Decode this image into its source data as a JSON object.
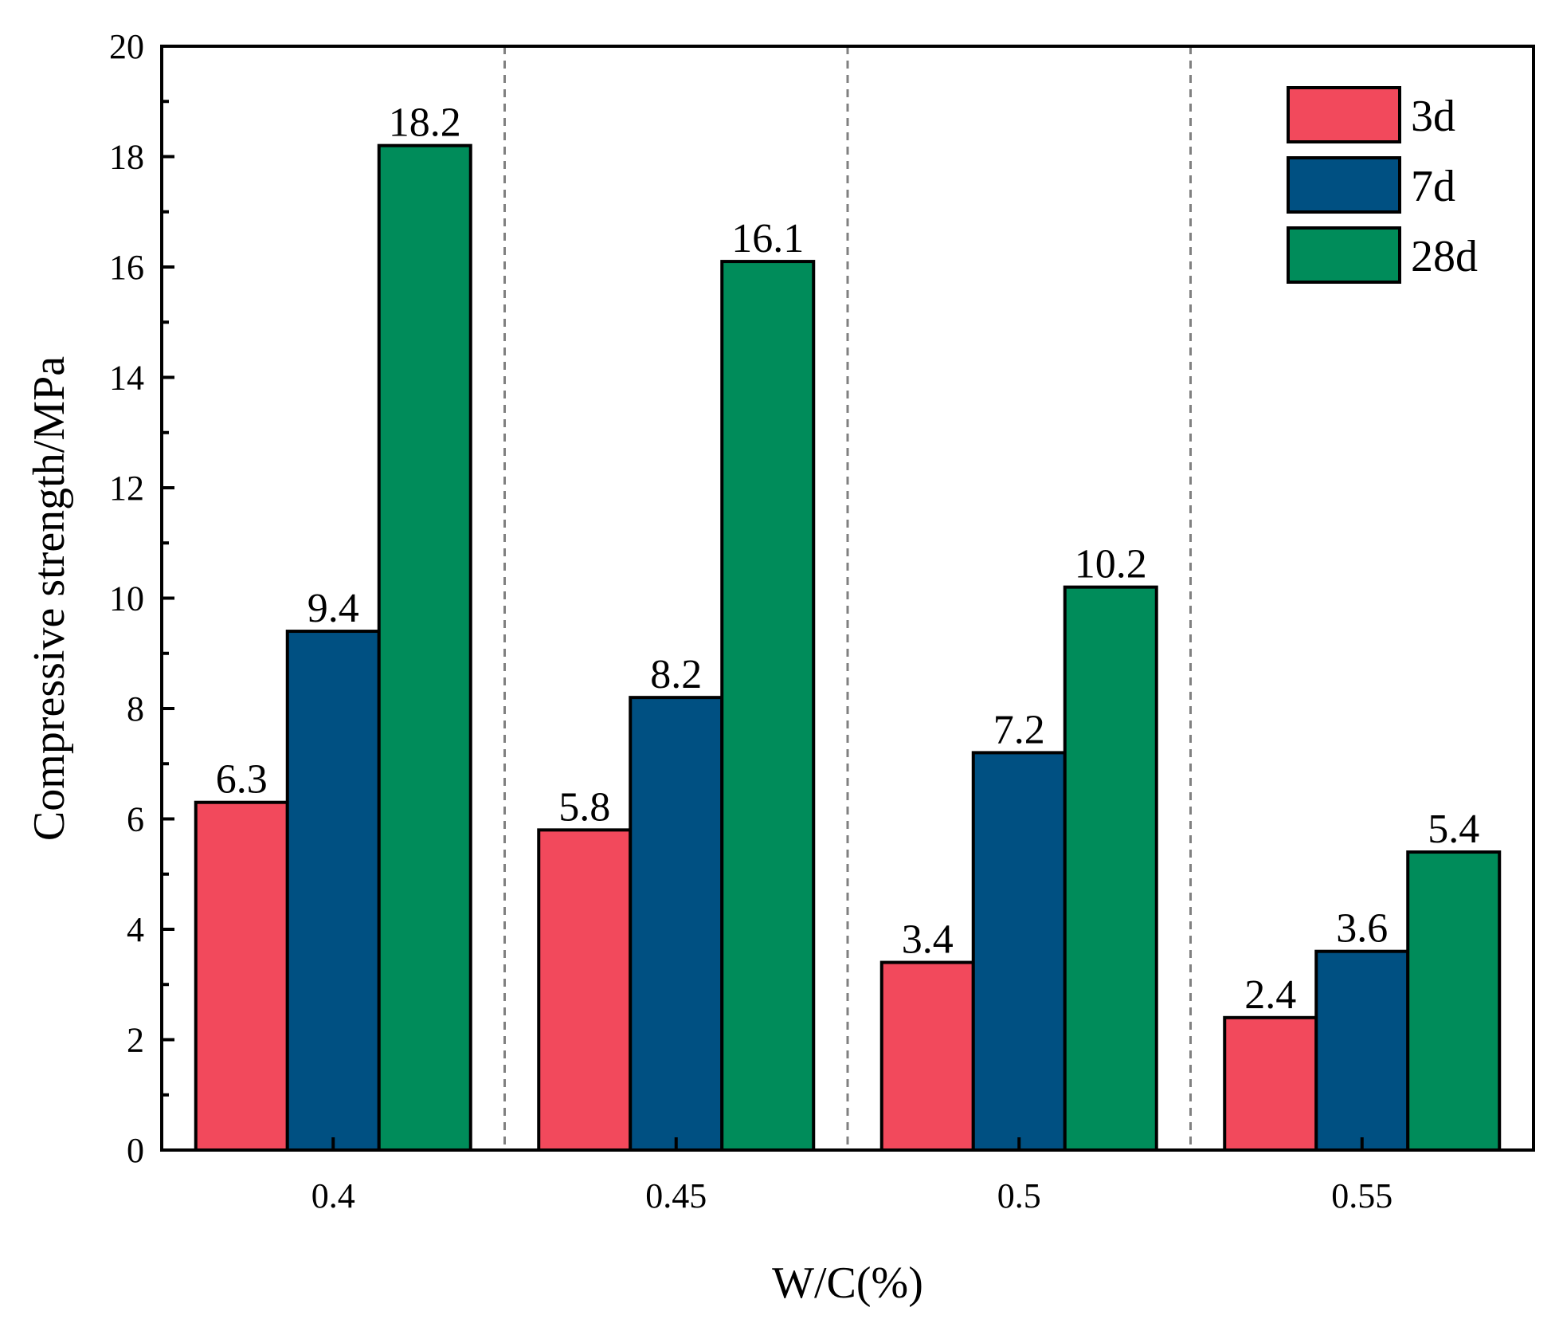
{
  "chart_data": {
    "type": "bar",
    "title": "",
    "xlabel": "W/C(%)",
    "ylabel": "Compressive strength/MPa",
    "categories": [
      "0.4",
      "0.45",
      "0.5",
      "0.55"
    ],
    "series": [
      {
        "name": "3d",
        "color": "#F2495C",
        "values": [
          6.3,
          5.8,
          3.4,
          2.4
        ],
        "labels": [
          "6.3",
          "5.8",
          "3.4",
          "2.4"
        ]
      },
      {
        "name": "7d",
        "color": "#005082",
        "values": [
          9.4,
          8.2,
          7.2,
          3.6
        ],
        "labels": [
          "9.4",
          "8.2",
          "7.2",
          "3.6"
        ]
      },
      {
        "name": "28d",
        "color": "#008C5A",
        "values": [
          18.2,
          16.1,
          10.2,
          5.4
        ],
        "labels": [
          "18.2",
          "16.1",
          "10.2",
          "5.4"
        ]
      }
    ],
    "ylim": [
      0,
      20
    ],
    "yticks": [
      "0",
      "2",
      "4",
      "6",
      "8",
      "10",
      "12",
      "14",
      "16",
      "18",
      "20"
    ],
    "grid": false,
    "group_separators": "dashed",
    "legend_position": "top-right"
  }
}
